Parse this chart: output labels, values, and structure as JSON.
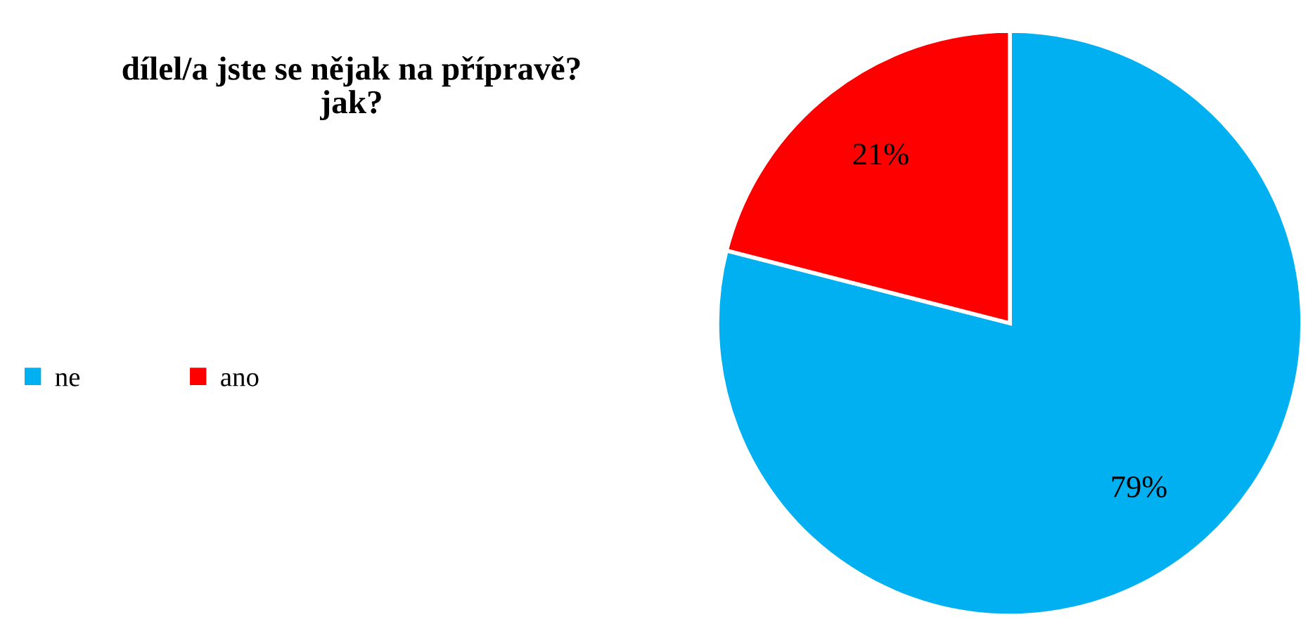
{
  "chart_data": {
    "type": "pie",
    "title": "dílel/a jste se nějak na přípravě?\njak?",
    "categories": [
      "ne",
      "ano"
    ],
    "values": [
      79,
      21
    ],
    "colors": [
      "#00b0f0",
      "#ff0000"
    ],
    "value_labels": [
      "79%",
      "21%"
    ],
    "legend": "left"
  }
}
